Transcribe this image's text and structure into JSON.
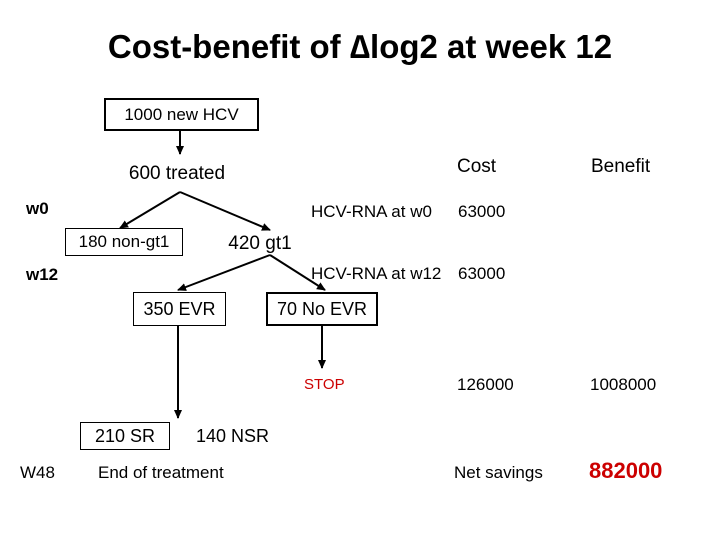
{
  "title": "Cost-benefit of ∆log2 at week 12",
  "colors": {
    "stop": "#cc0000",
    "highlight": "#cc0000",
    "text": "#000000"
  },
  "nodes": {
    "n1000": "1000 new HCV",
    "treated": "600 treated",
    "nongt1": "180 non-gt1",
    "gt1": "420 gt1",
    "evr": "350 EVR",
    "noevr": "70 No EVR",
    "sr": "210 SR",
    "nsr": "140 NSR"
  },
  "timepoints": {
    "w0": "w0",
    "w12": "w12",
    "w48": "W48"
  },
  "headers": {
    "cost": "Cost",
    "benefit": "Benefit"
  },
  "rows": {
    "rna_w0_label": "HCV-RNA at w0",
    "rna_w0_cost": "63000",
    "rna_w12_label": "HCV-RNA at w12",
    "rna_w12_cost": "63000",
    "stop": "STOP",
    "stop_cost": "126000",
    "stop_benefit": "1008000",
    "end_label": "End of treatment",
    "net_label": "Net savings",
    "net_value": "882000"
  }
}
